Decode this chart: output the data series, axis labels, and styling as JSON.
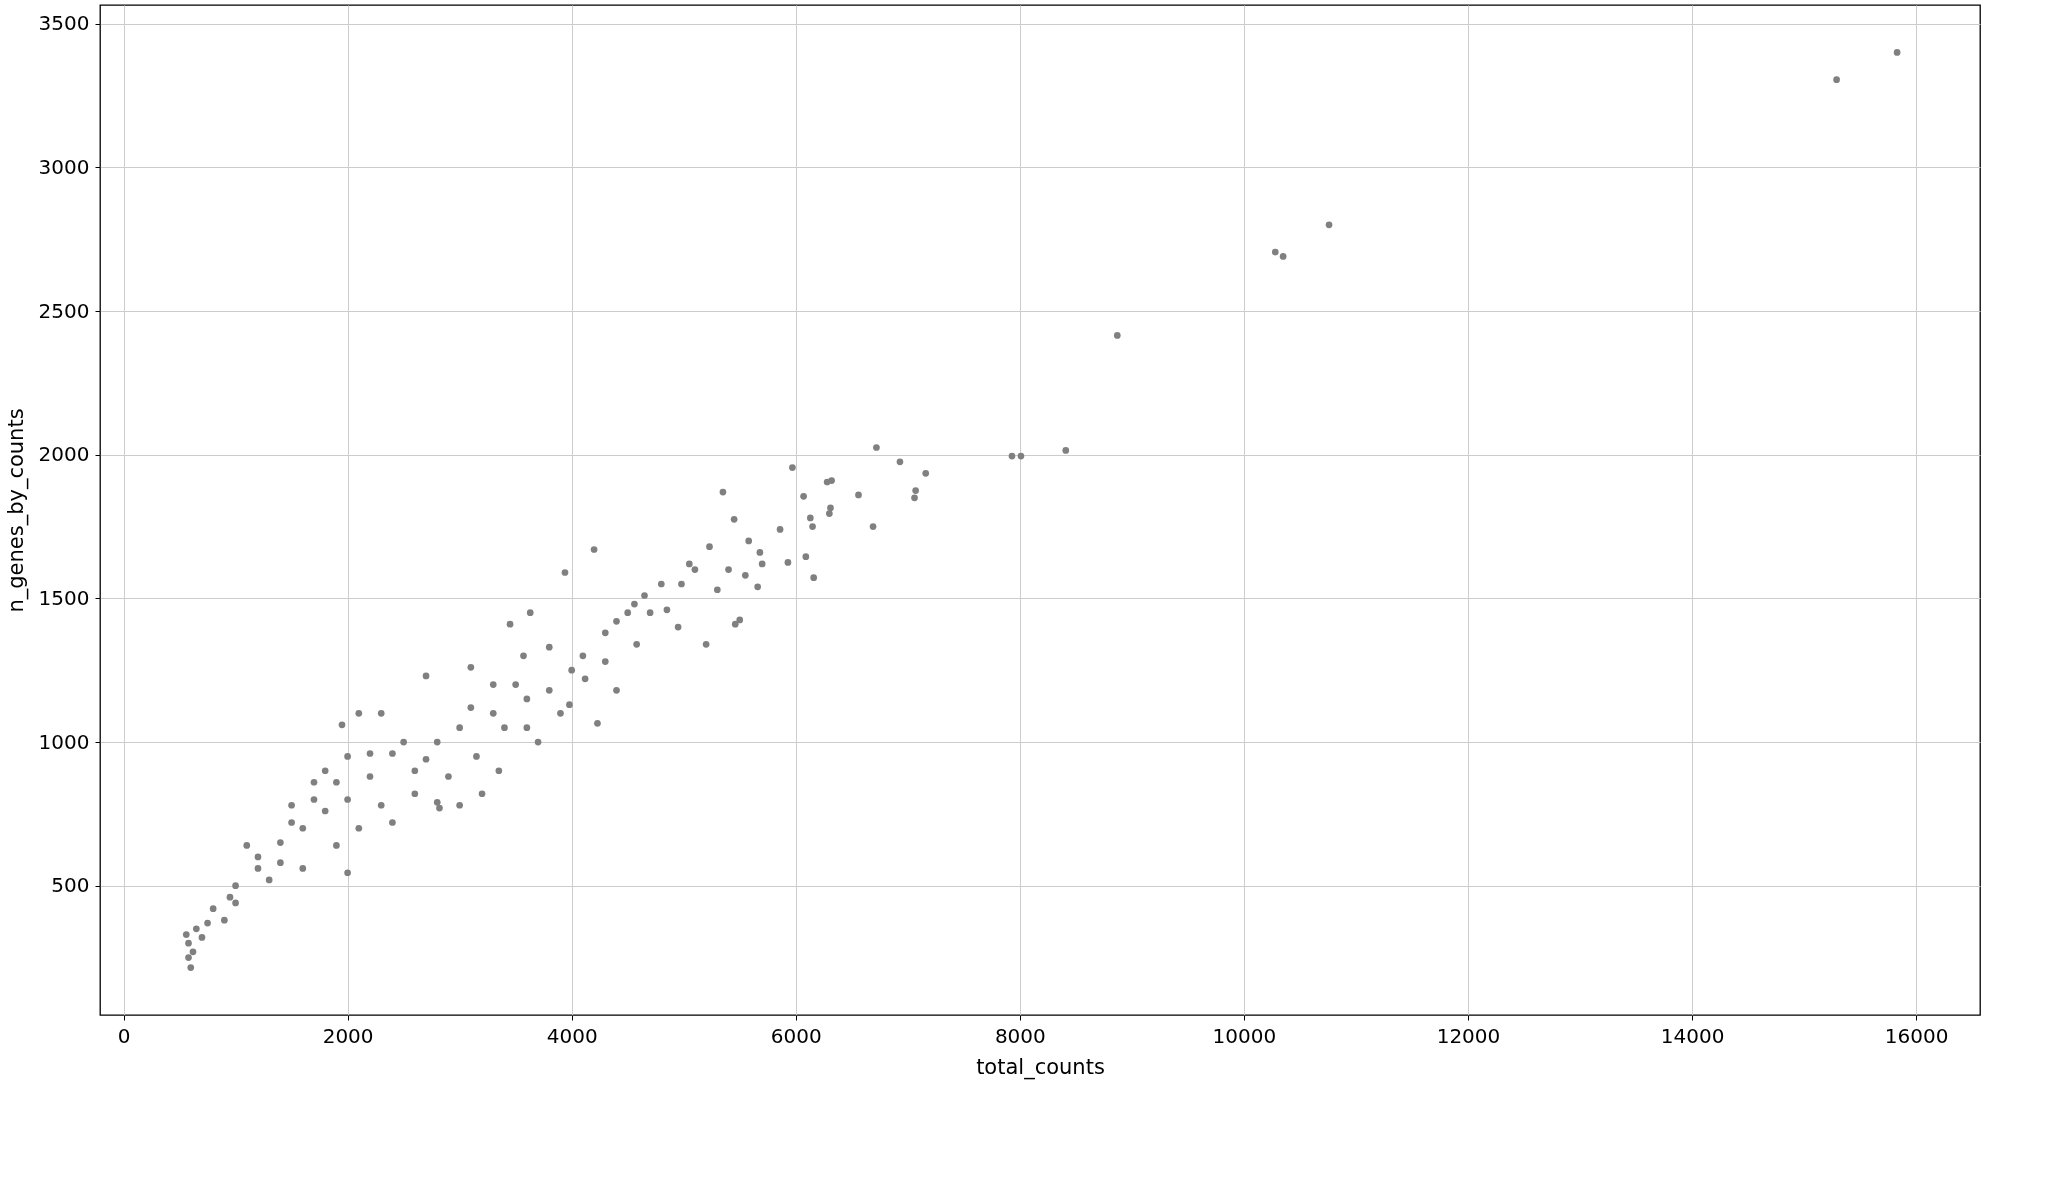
{
  "chart_data": {
    "type": "scatter",
    "xlabel": "total_counts",
    "ylabel": "n_genes_by_counts",
    "xlim": [
      -210,
      16570
    ],
    "ylim": [
      50,
      3565
    ],
    "xticks": [
      0,
      2000,
      4000,
      6000,
      8000,
      10000,
      12000,
      14000,
      16000
    ],
    "yticks": [
      500,
      1000,
      1500,
      2000,
      2500,
      3000,
      3500
    ],
    "grid": true,
    "marker": "circle",
    "series": [
      {
        "color": "#808080",
        "x": [
          15830,
          15290,
          10760,
          10280,
          10350,
          8870,
          8410,
          7930,
          8010,
          6720,
          6930,
          7160,
          7070,
          7060,
          6690,
          6560,
          6320,
          6280,
          6310,
          6300,
          6130,
          6150,
          6160,
          6090,
          5970,
          6070,
          5930,
          5860,
          5680,
          5660,
          5450,
          5350,
          5460,
          5500,
          5580,
          5200,
          5300,
          5230,
          5100,
          4980,
          4850,
          4950,
          4700,
          4560,
          4580,
          4400,
          4200,
          3940,
          4230,
          4120,
          3980,
          3630,
          4000,
          3800,
          3450,
          3300,
          3570,
          3700,
          3900,
          3150,
          3000,
          2820,
          2600,
          2400,
          2200,
          2000,
          1800,
          1600,
          1400,
          1200,
          1000,
          800,
          650,
          580,
          600,
          620,
          700,
          900,
          1100,
          1500,
          1700,
          1950,
          2100,
          2300,
          2700,
          3100,
          2400,
          2800,
          3200,
          1900,
          2000,
          1600,
          1300,
          1000,
          2500,
          2800,
          3000,
          3300,
          2200,
          1900,
          1700,
          1500,
          1800,
          2300,
          2600,
          3400,
          3600,
          3500,
          3800,
          4100,
          4300,
          4500,
          4650,
          4800,
          5050,
          5550,
          5700,
          5400,
          4400,
          4300,
          3600,
          3350,
          2900,
          2100,
          1400,
          1200,
          950,
          750,
          560,
          580,
          2000,
          2700,
          3100
        ],
        "values": [
          3400,
          3305,
          2800,
          2705,
          2690,
          2415,
          2015,
          1995,
          1995,
          2025,
          1975,
          1935,
          1875,
          1850,
          1750,
          1860,
          1910,
          1905,
          1815,
          1795,
          1780,
          1750,
          1572,
          1645,
          1955,
          1855,
          1625,
          1740,
          1660,
          1540,
          1775,
          1870,
          1410,
          1425,
          1700,
          1340,
          1530,
          1680,
          1600,
          1550,
          1460,
          1400,
          1450,
          1480,
          1340,
          1420,
          1670,
          1590,
          1065,
          1220,
          1130,
          1450,
          1250,
          1330,
          1410,
          1200,
          1300,
          1000,
          1100,
          950,
          780,
          770,
          900,
          960,
          880,
          800,
          760,
          700,
          650,
          560,
          500,
          420,
          350,
          300,
          215,
          270,
          320,
          380,
          640,
          780,
          860,
          1060,
          1100,
          1100,
          1230,
          1260,
          720,
          790,
          820,
          640,
          545,
          560,
          520,
          440,
          1000,
          1000,
          1050,
          1100,
          960,
          860,
          800,
          720,
          900,
          780,
          820,
          1050,
          1150,
          1200,
          1180,
          1300,
          1380,
          1450,
          1510,
          1550,
          1620,
          1580,
          1620,
          1600,
          1180,
          1280,
          1050,
          900,
          880,
          700,
          580,
          600,
          460,
          370,
          330,
          250,
          950,
          940,
          1120
        ]
      }
    ]
  }
}
